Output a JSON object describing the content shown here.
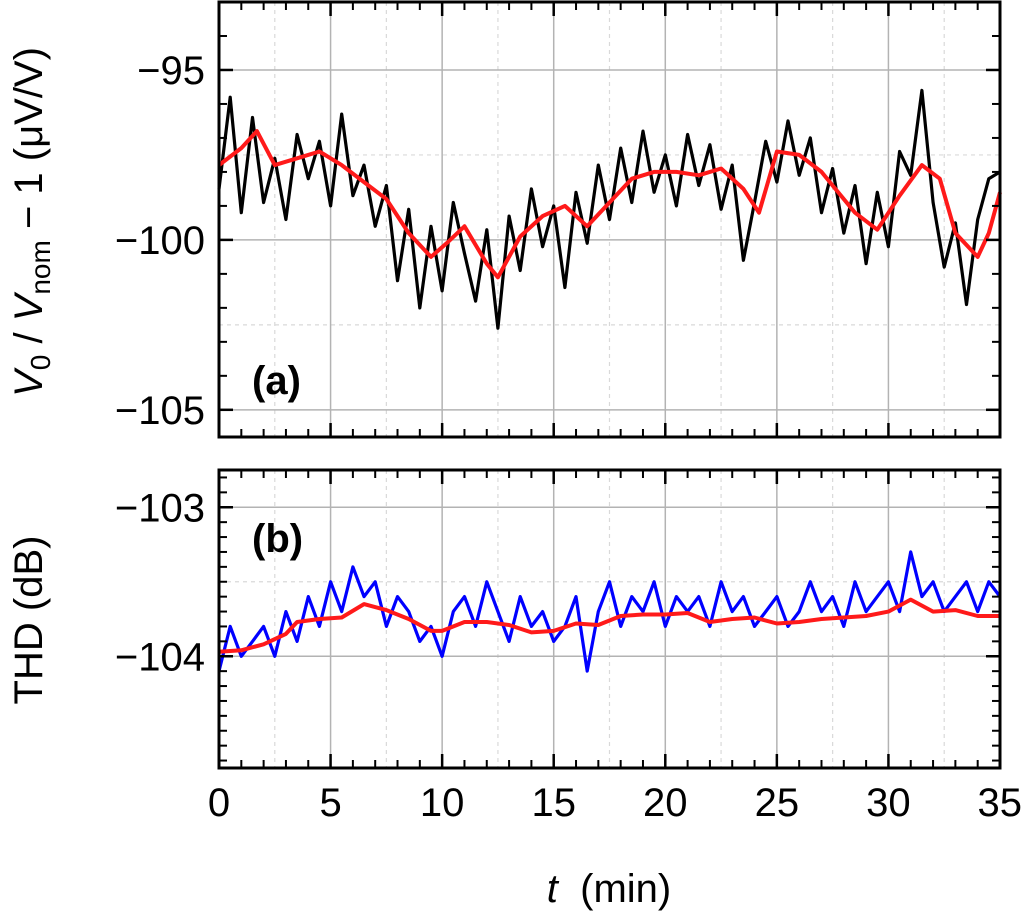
{
  "chart_data": [
    {
      "type": "line",
      "panel_label": "(a)",
      "ylabel_parts": {
        "v_letter": "V",
        "v_sub": "0",
        "slash": " / ",
        "vnom_letter": "V",
        "vnom_sub": "nom",
        "rest": " − 1  (μV/V)"
      },
      "xlim": [
        0,
        35
      ],
      "ylim": [
        -105.8,
        -93
      ],
      "y_ticks": [
        -95,
        -100,
        -105
      ],
      "y_tick_labels": [
        "−95",
        "−100",
        "−105"
      ],
      "grid": true,
      "series": [
        {
          "role": "raw",
          "color": "#000000",
          "t": [
            0,
            0.5,
            1,
            1.5,
            2,
            2.5,
            3,
            3.5,
            4,
            4.5,
            5,
            5.5,
            6,
            6.5,
            7,
            7.5,
            8,
            8.5,
            9,
            9.5,
            10,
            10.5,
            11,
            11.5,
            12,
            12.5,
            13,
            13.5,
            14,
            14.5,
            15,
            15.5,
            16,
            16.5,
            17,
            17.5,
            18,
            18.5,
            19,
            19.5,
            20,
            20.5,
            21,
            21.5,
            22,
            22.5,
            23,
            23.5,
            24,
            24.5,
            25,
            25.5,
            26,
            26.5,
            27,
            27.5,
            28,
            28.5,
            29,
            29.5,
            30,
            30.5,
            31,
            31.5,
            32,
            32.5,
            33,
            33.5,
            34,
            34.5,
            35
          ],
          "values": [
            -98.5,
            -95.8,
            -99.2,
            -96.4,
            -98.9,
            -97.6,
            -99.4,
            -96.9,
            -98.2,
            -97.1,
            -99.0,
            -96.3,
            -98.7,
            -97.8,
            -99.6,
            -98.4,
            -101.2,
            -99.1,
            -102.0,
            -99.6,
            -101.5,
            -98.9,
            -100.4,
            -101.8,
            -99.7,
            -102.6,
            -99.3,
            -100.9,
            -98.5,
            -100.2,
            -99.0,
            -101.4,
            -98.6,
            -100.1,
            -97.8,
            -99.4,
            -97.3,
            -98.9,
            -96.8,
            -98.6,
            -97.5,
            -99.0,
            -96.9,
            -98.4,
            -97.2,
            -99.1,
            -97.8,
            -100.6,
            -98.9,
            -97.1,
            -98.3,
            -96.5,
            -98.1,
            -97.0,
            -99.2,
            -97.9,
            -99.8,
            -98.4,
            -100.7,
            -98.6,
            -100.2,
            -97.4,
            -98.1,
            -95.6,
            -98.9,
            -100.8,
            -99.5,
            -101.9,
            -99.4,
            -98.2,
            -98.0
          ]
        },
        {
          "role": "smoothed",
          "color": "#ff1a1a",
          "t": [
            0,
            1,
            1.7,
            2.5,
            3.5,
            4.5,
            5.5,
            6.5,
            7.5,
            8.5,
            9.5,
            10.2,
            11,
            12,
            12.5,
            13.5,
            14.5,
            15.5,
            16.5,
            17.5,
            18.5,
            19.5,
            20.5,
            21.5,
            22.5,
            23.5,
            24.2,
            25,
            26,
            27,
            27.5,
            28.5,
            29.5,
            30.5,
            31.5,
            32.3,
            33,
            34,
            34.5,
            35
          ],
          "values": [
            -97.8,
            -97.3,
            -96.8,
            -97.8,
            -97.6,
            -97.4,
            -97.8,
            -98.3,
            -98.8,
            -99.8,
            -100.5,
            -100.1,
            -99.6,
            -100.7,
            -101.1,
            -99.9,
            -99.3,
            -99.0,
            -99.6,
            -98.9,
            -98.2,
            -98.0,
            -98.0,
            -98.1,
            -97.9,
            -98.5,
            -99.2,
            -97.4,
            -97.5,
            -98.0,
            -98.4,
            -99.2,
            -99.7,
            -98.7,
            -97.8,
            -98.2,
            -99.8,
            -100.5,
            -99.8,
            -98.6
          ]
        }
      ]
    },
    {
      "type": "line",
      "panel_label": "(b)",
      "ylabel": "THD  (dB)",
      "xlabel_t": "t",
      "xlabel_rest": "  (min)",
      "xlim": [
        0,
        35
      ],
      "ylim": [
        -104.75,
        -102.75
      ],
      "y_ticks": [
        -103,
        -104
      ],
      "y_tick_labels": [
        "−103",
        "−104"
      ],
      "x_ticks": [
        0,
        5,
        10,
        15,
        20,
        25,
        30,
        35
      ],
      "x_tick_labels": [
        "0",
        "5",
        "10",
        "15",
        "20",
        "25",
        "30",
        "35"
      ],
      "grid": true,
      "series": [
        {
          "role": "raw",
          "color": "#0000ff",
          "t": [
            0,
            0.5,
            1,
            1.5,
            2,
            2.5,
            3,
            3.5,
            4,
            4.5,
            5,
            5.5,
            6,
            6.5,
            7,
            7.5,
            8,
            8.5,
            9,
            9.5,
            10,
            10.5,
            11,
            11.5,
            12,
            12.5,
            13,
            13.5,
            14,
            14.5,
            15,
            15.5,
            16,
            16.5,
            17,
            17.5,
            18,
            18.5,
            19,
            19.5,
            20,
            20.5,
            21,
            21.5,
            22,
            22.5,
            23,
            23.5,
            24,
            24.5,
            25,
            25.5,
            26,
            26.5,
            27,
            27.5,
            28,
            28.5,
            29,
            29.5,
            30,
            30.5,
            31,
            31.5,
            32,
            32.5,
            33,
            33.5,
            34,
            34.5,
            35
          ],
          "values": [
            -104.1,
            -103.8,
            -104.0,
            -103.9,
            -103.8,
            -104.0,
            -103.7,
            -103.9,
            -103.6,
            -103.8,
            -103.5,
            -103.7,
            -103.4,
            -103.6,
            -103.5,
            -103.8,
            -103.6,
            -103.7,
            -103.9,
            -103.8,
            -104.0,
            -103.7,
            -103.6,
            -103.8,
            -103.5,
            -103.7,
            -103.9,
            -103.6,
            -103.8,
            -103.7,
            -103.9,
            -103.8,
            -103.6,
            -104.1,
            -103.7,
            -103.5,
            -103.8,
            -103.6,
            -103.7,
            -103.5,
            -103.8,
            -103.6,
            -103.7,
            -103.6,
            -103.8,
            -103.5,
            -103.7,
            -103.6,
            -103.8,
            -103.7,
            -103.6,
            -103.8,
            -103.7,
            -103.5,
            -103.7,
            -103.6,
            -103.8,
            -103.5,
            -103.7,
            -103.6,
            -103.5,
            -103.7,
            -103.3,
            -103.6,
            -103.5,
            -103.7,
            -103.6,
            -103.5,
            -103.7,
            -103.5,
            -103.6
          ]
        },
        {
          "role": "smoothed",
          "color": "#ff1a1a",
          "t": [
            0,
            1,
            2,
            3,
            3.5,
            4.5,
            5.5,
            6.5,
            7.5,
            8.5,
            9.5,
            10,
            11,
            12,
            13,
            14,
            15,
            16,
            17,
            18,
            19,
            20,
            21,
            22,
            23,
            24,
            25,
            26,
            27,
            28,
            29,
            30,
            31,
            32,
            33,
            34,
            35
          ],
          "values": [
            -103.97,
            -103.96,
            -103.92,
            -103.85,
            -103.77,
            -103.75,
            -103.74,
            -103.65,
            -103.69,
            -103.75,
            -103.83,
            -103.83,
            -103.77,
            -103.77,
            -103.79,
            -103.84,
            -103.83,
            -103.78,
            -103.79,
            -103.73,
            -103.72,
            -103.72,
            -103.71,
            -103.77,
            -103.75,
            -103.74,
            -103.78,
            -103.77,
            -103.75,
            -103.74,
            -103.73,
            -103.7,
            -103.62,
            -103.7,
            -103.69,
            -103.73,
            -103.73
          ]
        }
      ]
    }
  ]
}
